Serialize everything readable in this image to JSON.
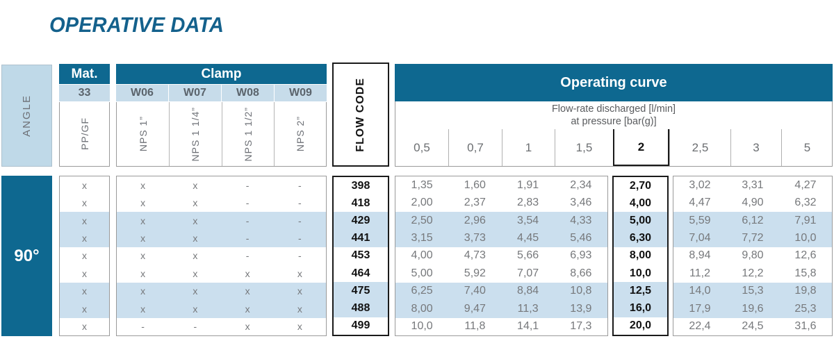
{
  "title": "OPERATIVE DATA",
  "colors": {
    "dark_blue": "#0e6890",
    "light_blue_stripe": "#cbdfee",
    "light_blue_band": "#c7dcea",
    "angle_box_blue": "#bfd9e8",
    "title_blue": "#14618c",
    "text_gray": "#76787b",
    "border_black": "#1a1a1a"
  },
  "header": {
    "angle_label": "ANGLE",
    "mat_label": "Mat.",
    "mat_code": "33",
    "mat_material": "PP/GF",
    "clamp_label": "Clamp",
    "clamp_codes": [
      "W06",
      "W07",
      "W08",
      "W09"
    ],
    "clamp_sizes": [
      "NPS 1”",
      "NPS 1 1/4”",
      "NPS 1 1/2”",
      "NPS 2”"
    ],
    "flow_code_label": "FLOW CODE",
    "operating_curve_label": "Operating curve",
    "subtitle_line1": "Flow-rate discharged [l/min]",
    "subtitle_line2": "at pressure [bar(g)]",
    "pressures": [
      "0,5",
      "0,7",
      "1",
      "1,5",
      "2",
      "2,5",
      "3",
      "5"
    ],
    "highlight_pressure": "2"
  },
  "body": {
    "angle_value": "90°",
    "stripe_row_indexes": [
      2,
      3,
      6,
      7
    ],
    "rows": [
      {
        "mat": "x",
        "clamp": [
          "x",
          "x",
          "-",
          "-"
        ],
        "code": "398",
        "values": [
          "1,35",
          "1,60",
          "1,91",
          "2,34",
          "2,70",
          "3,02",
          "3,31",
          "4,27"
        ]
      },
      {
        "mat": "x",
        "clamp": [
          "x",
          "x",
          "-",
          "-"
        ],
        "code": "418",
        "values": [
          "2,00",
          "2,37",
          "2,83",
          "3,46",
          "4,00",
          "4,47",
          "4,90",
          "6,32"
        ]
      },
      {
        "mat": "x",
        "clamp": [
          "x",
          "x",
          "-",
          "-"
        ],
        "code": "429",
        "values": [
          "2,50",
          "2,96",
          "3,54",
          "4,33",
          "5,00",
          "5,59",
          "6,12",
          "7,91"
        ]
      },
      {
        "mat": "x",
        "clamp": [
          "x",
          "x",
          "-",
          "-"
        ],
        "code": "441",
        "values": [
          "3,15",
          "3,73",
          "4,45",
          "5,46",
          "6,30",
          "7,04",
          "7,72",
          "10,0"
        ]
      },
      {
        "mat": "x",
        "clamp": [
          "x",
          "x",
          "-",
          "-"
        ],
        "code": "453",
        "values": [
          "4,00",
          "4,73",
          "5,66",
          "6,93",
          "8,00",
          "8,94",
          "9,80",
          "12,6"
        ]
      },
      {
        "mat": "x",
        "clamp": [
          "x",
          "x",
          "x",
          "x"
        ],
        "code": "464",
        "values": [
          "5,00",
          "5,92",
          "7,07",
          "8,66",
          "10,0",
          "11,2",
          "12,2",
          "15,8"
        ]
      },
      {
        "mat": "x",
        "clamp": [
          "x",
          "x",
          "x",
          "x"
        ],
        "code": "475",
        "values": [
          "6,25",
          "7,40",
          "8,84",
          "10,8",
          "12,5",
          "14,0",
          "15,3",
          "19,8"
        ]
      },
      {
        "mat": "x",
        "clamp": [
          "x",
          "x",
          "x",
          "x"
        ],
        "code": "488",
        "values": [
          "8,00",
          "9,47",
          "11,3",
          "13,9",
          "16,0",
          "17,9",
          "19,6",
          "25,3"
        ]
      },
      {
        "mat": "x",
        "clamp": [
          "-",
          "-",
          "x",
          "x"
        ],
        "code": "499",
        "values": [
          "10,0",
          "11,8",
          "14,1",
          "17,3",
          "20,0",
          "22,4",
          "24,5",
          "31,6"
        ]
      }
    ]
  }
}
